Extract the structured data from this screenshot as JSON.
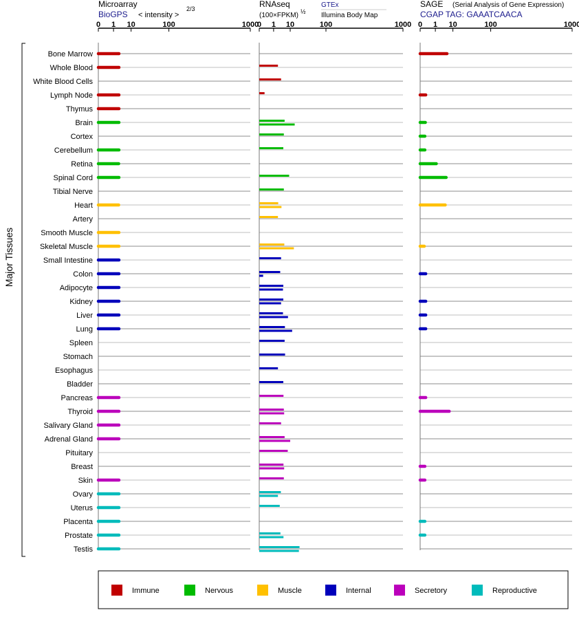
{
  "panels": {
    "microarray": {
      "title": "Microarray",
      "subtitle": "BioGPS",
      "note": "< intensity >",
      "exponent": "2/3",
      "ticks": [
        "0",
        "1",
        "10",
        "100",
        "1000"
      ]
    },
    "rnaseq": {
      "title": "RNAseq",
      "subtitle": "(100×FPKM)",
      "exponent": "½",
      "source1": "GTEx",
      "source2": "Illumina Body Map",
      "ticks": [
        "0",
        "1",
        "10",
        "100",
        "1000"
      ]
    },
    "sage": {
      "title": "SAGE",
      "note": "(Serial Analysis of Gene Expression)",
      "subtitle": "CGAP TAG: GAAATCAACA",
      "ticks": [
        "0",
        "1",
        "10",
        "100",
        "1000"
      ]
    }
  },
  "y_axis_label": "Major Tissues",
  "legend": [
    {
      "label": "Immune",
      "color": "#c00000"
    },
    {
      "label": "Nervous",
      "color": "#00bb00"
    },
    {
      "label": "Muscle",
      "color": "#ffc000"
    },
    {
      "label": "Internal",
      "color": "#0000bb"
    },
    {
      "label": "Secretory",
      "color": "#bb00bb"
    },
    {
      "label": "Reproductive",
      "color": "#00bbbb"
    }
  ],
  "chart_data": {
    "type": "bar",
    "orientation": "horizontal",
    "categories": [
      "Bone Marrow",
      "Whole Blood",
      "White Blood Cells",
      "Lymph Node",
      "Thymus",
      "Brain",
      "Cortex",
      "Cerebellum",
      "Retina",
      "Spinal Cord",
      "Tibial Nerve",
      "Heart",
      "Artery",
      "Smooth Muscle",
      "Skeletal Muscle",
      "Small Intestine",
      "Colon",
      "Adipocyte",
      "Kidney",
      "Liver",
      "Lung",
      "Spleen",
      "Stomach",
      "Esophagus",
      "Bladder",
      "Pancreas",
      "Thyroid",
      "Salivary Gland",
      "Adrenal Gland",
      "Pituitary",
      "Breast",
      "Skin",
      "Ovary",
      "Uterus",
      "Placenta",
      "Prostate",
      "Testis"
    ],
    "groups": [
      "Immune",
      "Immune",
      "Immune",
      "Immune",
      "Immune",
      "Nervous",
      "Nervous",
      "Nervous",
      "Nervous",
      "Nervous",
      "Nervous",
      "Muscle",
      "Muscle",
      "Muscle",
      "Muscle",
      "Internal",
      "Internal",
      "Internal",
      "Internal",
      "Internal",
      "Internal",
      "Internal",
      "Internal",
      "Internal",
      "Internal",
      "Secretory",
      "Secretory",
      "Secretory",
      "Secretory",
      "Secretory",
      "Secretory",
      "Secretory",
      "Reproductive",
      "Reproductive",
      "Reproductive",
      "Reproductive",
      "Reproductive"
    ],
    "scale": "power",
    "xlim": [
      0,
      1000
    ],
    "series": [
      {
        "name": "Microarray",
        "values": [
          2.5,
          2.5,
          null,
          2.5,
          2.5,
          2.5,
          null,
          2.5,
          2.4,
          2.5,
          null,
          2.4,
          null,
          2.5,
          2.5,
          2.5,
          2.5,
          2.5,
          2.5,
          2.5,
          2.5,
          null,
          null,
          null,
          null,
          2.5,
          2.5,
          2.5,
          2.5,
          null,
          null,
          2.5,
          2.5,
          2.5,
          2.5,
          2.5,
          2.5
        ]
      },
      {
        "name": "GTEx",
        "values": [
          null,
          2.2,
          3.5,
          0.05,
          null,
          5.5,
          5.0,
          4.7,
          null,
          9.0,
          5.0,
          2.3,
          2.2,
          null,
          5.3,
          3.5,
          3.1,
          4.7,
          4.7,
          4.5,
          5.7,
          5.5,
          5.8,
          2.2,
          4.7,
          4.8,
          5.0,
          3.5,
          5.5,
          7.8,
          4.8,
          5.0,
          3.4,
          2.9,
          null,
          3.2,
          22.0
        ]
      },
      {
        "name": "Illumina Body Map",
        "values": [
          null,
          null,
          null,
          null,
          null,
          15.0,
          null,
          null,
          null,
          null,
          null,
          3.7,
          null,
          null,
          14.0,
          null,
          0.02,
          4.5,
          3.5,
          8.0,
          12.0,
          null,
          null,
          null,
          null,
          null,
          5.2,
          null,
          10.0,
          null,
          5.2,
          null,
          2.2,
          null,
          null,
          4.8,
          21.0
        ]
      },
      {
        "name": "SAGE",
        "values": [
          5.5,
          null,
          null,
          0.05,
          null,
          0.04,
          0.03,
          0.03,
          1.2,
          5.0,
          null,
          4.5,
          null,
          null,
          0.02,
          null,
          0.05,
          null,
          0.05,
          0.05,
          0.05,
          null,
          null,
          null,
          null,
          0.05,
          7.0,
          null,
          null,
          null,
          0.03,
          0.03,
          null,
          null,
          0.03,
          0.03,
          null
        ]
      }
    ]
  }
}
